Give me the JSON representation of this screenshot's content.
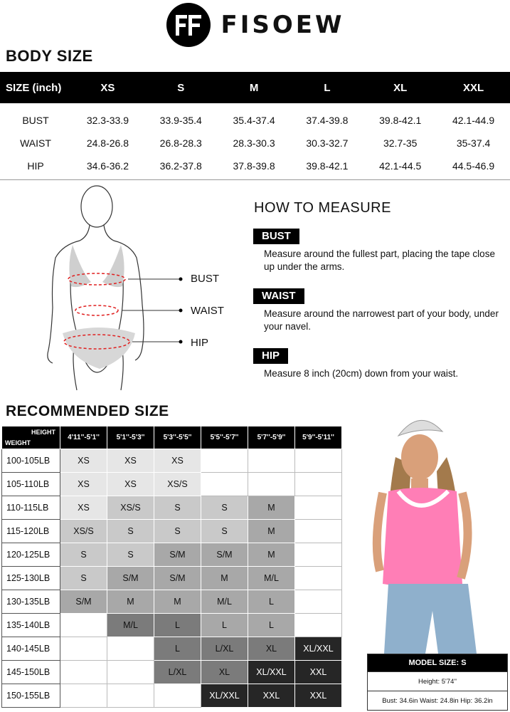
{
  "brand": "FISOEW",
  "body_size": {
    "title": "BODY SIZE",
    "header": [
      "SIZE (inch)",
      "XS",
      "S",
      "M",
      "L",
      "XL",
      "XXL"
    ],
    "rows": [
      [
        "BUST",
        "32.3-33.9",
        "33.9-35.4",
        "35.4-37.4",
        "37.4-39.8",
        "39.8-42.1",
        "42.1-44.9"
      ],
      [
        "WAIST",
        "24.8-26.8",
        "26.8-28.3",
        "28.3-30.3",
        "30.3-32.7",
        "32.7-35",
        "35-37.4"
      ],
      [
        "HIP",
        "34.6-36.2",
        "36.2-37.8",
        "37.8-39.8",
        "39.8-42.1",
        "42.1-44.5",
        "44.5-46.9"
      ]
    ]
  },
  "figure_labels": {
    "bust": "BUST",
    "waist": "WAIST",
    "hip": "HIP"
  },
  "how_to_measure": {
    "title": "HOW TO MEASURE",
    "items": [
      {
        "tag": "BUST",
        "text": "Measure around the fullest part, placing the tape close up under the arms."
      },
      {
        "tag": "WAIST",
        "text": "Measure around the narrowest part of your body, under your navel."
      },
      {
        "tag": "HIP",
        "text": "Measure 8 inch (20cm) down from your waist."
      }
    ]
  },
  "recommended": {
    "title": "RECOMMENDED SIZE",
    "corner_height": "HEIGHT",
    "corner_weight": "WEIGHT",
    "heights": [
      "4'11''-5'1''",
      "5'1''-5'3''",
      "5'3''-5'5''",
      "5'5''-5'7''",
      "5'7''-5'9''",
      "5'9''-5'11''"
    ],
    "rows": [
      {
        "weight": "100-105LB",
        "cells": [
          [
            "XS",
            1
          ],
          [
            "XS",
            1
          ],
          [
            "XS",
            1
          ],
          [
            "",
            0
          ],
          [
            "",
            0
          ],
          [
            "",
            0
          ]
        ]
      },
      {
        "weight": "105-110LB",
        "cells": [
          [
            "XS",
            1
          ],
          [
            "XS",
            1
          ],
          [
            "XS/S",
            1
          ],
          [
            "",
            0
          ],
          [
            "",
            0
          ],
          [
            "",
            0
          ]
        ]
      },
      {
        "weight": "110-115LB",
        "cells": [
          [
            "XS",
            1
          ],
          [
            "XS/S",
            2
          ],
          [
            "S",
            2
          ],
          [
            "S",
            2
          ],
          [
            "M",
            3
          ],
          [
            "",
            0
          ]
        ]
      },
      {
        "weight": "115-120LB",
        "cells": [
          [
            "XS/S",
            2
          ],
          [
            "S",
            2
          ],
          [
            "S",
            2
          ],
          [
            "S",
            2
          ],
          [
            "M",
            3
          ],
          [
            "",
            0
          ]
        ]
      },
      {
        "weight": "120-125LB",
        "cells": [
          [
            "S",
            2
          ],
          [
            "S",
            2
          ],
          [
            "S/M",
            3
          ],
          [
            "S/M",
            3
          ],
          [
            "M",
            3
          ],
          [
            "",
            0
          ]
        ]
      },
      {
        "weight": "125-130LB",
        "cells": [
          [
            "S",
            2
          ],
          [
            "S/M",
            3
          ],
          [
            "S/M",
            3
          ],
          [
            "M",
            3
          ],
          [
            "M/L",
            3
          ],
          [
            "",
            0
          ]
        ]
      },
      {
        "weight": "130-135LB",
        "cells": [
          [
            "S/M",
            3
          ],
          [
            "M",
            3
          ],
          [
            "M",
            3
          ],
          [
            "M/L",
            3
          ],
          [
            "L",
            3
          ],
          [
            "",
            0
          ]
        ]
      },
      {
        "weight": "135-140LB",
        "cells": [
          [
            "",
            0
          ],
          [
            "M/L",
            4
          ],
          [
            "L",
            4
          ],
          [
            "L",
            3
          ],
          [
            "L",
            3
          ],
          [
            "",
            0
          ]
        ]
      },
      {
        "weight": "140-145LB",
        "cells": [
          [
            "",
            0
          ],
          [
            "",
            0
          ],
          [
            "L",
            4
          ],
          [
            "L/XL",
            4
          ],
          [
            "XL",
            4
          ],
          [
            "XL/XXL",
            6
          ]
        ]
      },
      {
        "weight": "145-150LB",
        "cells": [
          [
            "",
            0
          ],
          [
            "",
            0
          ],
          [
            "L/XL",
            4
          ],
          [
            "XL",
            4
          ],
          [
            "XL/XXL",
            6
          ],
          [
            "XXL",
            6
          ]
        ]
      },
      {
        "weight": "150-155LB",
        "cells": [
          [
            "",
            0
          ],
          [
            "",
            0
          ],
          [
            "",
            0
          ],
          [
            "XL/XXL",
            6
          ],
          [
            "XXL",
            6
          ],
          [
            "XXL",
            6
          ]
        ]
      }
    ]
  },
  "model": {
    "size": "MODEL SIZE: S",
    "height": "Height: 5'74''",
    "measures": "Bust: 34.6in Waist: 24.8in Hip: 36.2in"
  }
}
